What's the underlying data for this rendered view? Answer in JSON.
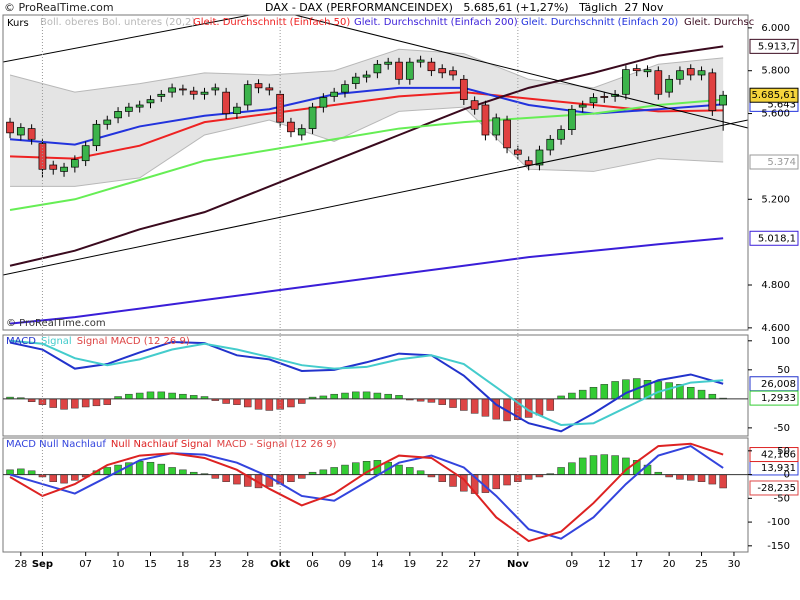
{
  "source": "© ProRealTime.com",
  "chart_data": [
    {
      "type": "candlestick",
      "title": "DAX - DAX (PERFORMANCEINDEX)   5.685,61 (+1,27%)   Täglich  27 Nov",
      "label": "Kurs",
      "watermark": "© ProRealTime.com",
      "xlim": [
        -0.65,
        68.3
      ],
      "ylim": [
        4590,
        6060
      ],
      "yticks": [
        {
          "value": 4600,
          "label": "4.600"
        },
        {
          "value": 4800,
          "label": "4.800"
        },
        {
          "value": 5200,
          "label": "5.200"
        },
        {
          "value": 5600,
          "label": "5.600"
        },
        {
          "value": 5800,
          "label": "5.800"
        },
        {
          "value": 6000,
          "label": "6.000"
        }
      ],
      "up_color": "#3cb44b",
      "down_color": "#e04040",
      "open": [
        5560,
        5500,
        5530,
        5460,
        5360,
        5330,
        5350,
        5380,
        5450,
        5550,
        5580,
        5610,
        5630,
        5650,
        5680,
        5700,
        5715,
        5705,
        5690,
        5710,
        5700,
        5600,
        5640,
        5740,
        5720,
        5690,
        5560,
        5500,
        5530,
        5630,
        5680,
        5700,
        5740,
        5770,
        5790,
        5830,
        5840,
        5760,
        5840,
        5840,
        5810,
        5800,
        5760,
        5660,
        5640,
        5500,
        5570,
        5430,
        5380,
        5360,
        5430,
        5480,
        5525,
        5630,
        5650,
        5680,
        5680,
        5690,
        5810,
        5795,
        5800,
        5700,
        5760,
        5810,
        5780,
        5790,
        5640
      ],
      "high": [
        5580,
        5555,
        5550,
        5480,
        5380,
        5370,
        5405,
        5470,
        5570,
        5590,
        5630,
        5650,
        5660,
        5685,
        5710,
        5740,
        5735,
        5725,
        5720,
        5740,
        5720,
        5650,
        5755,
        5760,
        5740,
        5710,
        5580,
        5550,
        5650,
        5695,
        5720,
        5755,
        5790,
        5800,
        5850,
        5860,
        5860,
        5860,
        5870,
        5860,
        5830,
        5820,
        5780,
        5680,
        5660,
        5600,
        5590,
        5450,
        5400,
        5450,
        5500,
        5545,
        5640,
        5660,
        5695,
        5700,
        5710,
        5825,
        5830,
        5825,
        5820,
        5780,
        5820,
        5830,
        5820,
        5810,
        5706
      ],
      "low": [
        5485,
        5475,
        5455,
        5300,
        5315,
        5305,
        5325,
        5355,
        5425,
        5525,
        5555,
        5585,
        5605,
        5625,
        5655,
        5675,
        5685,
        5665,
        5665,
        5685,
        5575,
        5575,
        5615,
        5695,
        5685,
        5535,
        5490,
        5475,
        5505,
        5605,
        5655,
        5675,
        5715,
        5745,
        5765,
        5805,
        5735,
        5735,
        5815,
        5775,
        5765,
        5755,
        5640,
        5595,
        5475,
        5475,
        5415,
        5385,
        5335,
        5335,
        5405,
        5455,
        5500,
        5605,
        5625,
        5650,
        5655,
        5665,
        5775,
        5770,
        5665,
        5675,
        5735,
        5755,
        5755,
        5589,
        5520
      ],
      "close": [
        5510,
        5535,
        5480,
        5340,
        5340,
        5350,
        5385,
        5450,
        5550,
        5570,
        5610,
        5630,
        5640,
        5665,
        5690,
        5720,
        5710,
        5690,
        5700,
        5720,
        5600,
        5630,
        5735,
        5720,
        5710,
        5560,
        5515,
        5530,
        5630,
        5675,
        5700,
        5735,
        5770,
        5780,
        5830,
        5840,
        5760,
        5840,
        5850,
        5800,
        5790,
        5780,
        5665,
        5620,
        5500,
        5580,
        5440,
        5410,
        5360,
        5430,
        5480,
        5525,
        5620,
        5640,
        5675,
        5675,
        5690,
        5805,
        5800,
        5805,
        5690,
        5760,
        5800,
        5780,
        5800,
        5614,
        5685.61
      ],
      "close_label": "5.685,61",
      "close_label_color": "#f5d43c",
      "band": {
        "name": "Boll. oberes Bol. unteres (20,2)",
        "color": "#e4e4e4",
        "line_color": "#b8b8b8",
        "x": [
          0,
          6,
          12,
          18,
          24,
          30,
          36,
          42,
          48,
          54,
          60,
          66
        ],
        "upper": [
          5780,
          5700,
          5740,
          5790,
          5780,
          5800,
          5900,
          5880,
          5760,
          5720,
          5830,
          5860
        ],
        "lower": [
          5260,
          5260,
          5300,
          5500,
          5570,
          5470,
          5610,
          5630,
          5340,
          5330,
          5390,
          5374
        ],
        "end_label": "5.374"
      },
      "series": [
        {
          "name": "Gleit. Durchschnitt (Einfach 50)",
          "color": "#ee2222",
          "x": [
            0,
            6,
            12,
            18,
            24,
            30,
            36,
            42,
            48,
            54,
            60,
            66
          ],
          "values": [
            5400,
            5390,
            5450,
            5560,
            5600,
            5640,
            5680,
            5700,
            5670,
            5640,
            5610,
            5615
          ]
        },
        {
          "name": "Gleit. Durchschnitt (Einfach 200)",
          "color": "#3a1ed8",
          "x": [
            0,
            6,
            12,
            18,
            24,
            30,
            36,
            42,
            48,
            54,
            60,
            66
          ],
          "values": [
            4620,
            4650,
            4690,
            4730,
            4770,
            4810,
            4850,
            4890,
            4930,
            4960,
            4990,
            5018.1
          ],
          "end_label": "5.018,1"
        },
        {
          "name": "Gleit. Durchschnitt (Einfach 20)",
          "color": "#2233dd",
          "x": [
            0,
            6,
            12,
            18,
            24,
            30,
            36,
            42,
            48,
            54,
            60,
            66
          ],
          "values": [
            5480,
            5455,
            5540,
            5590,
            5620,
            5690,
            5720,
            5720,
            5640,
            5600,
            5620,
            5643
          ],
          "end_label": "5.643"
        },
        {
          "name": "Gleit. Durchsc",
          "color": "#3a0a1e",
          "x": [
            0,
            6,
            12,
            18,
            24,
            30,
            36,
            42,
            48,
            54,
            60,
            66
          ],
          "values": [
            4890,
            4960,
            5060,
            5140,
            5260,
            5380,
            5500,
            5620,
            5720,
            5790,
            5870,
            5913.7
          ],
          "end_label": "5.913,7"
        },
        {
          "color": "#66ee55",
          "x": [
            0,
            6,
            12,
            18,
            24,
            30,
            36,
            42,
            48,
            54,
            60,
            66
          ],
          "values": [
            5150,
            5200,
            5290,
            5380,
            5430,
            5480,
            5530,
            5560,
            5580,
            5600,
            5640,
            5665
          ]
        }
      ]
    },
    {
      "type": "line",
      "xlim": [
        -0.65,
        68.3
      ],
      "ylim": [
        -64,
        110
      ],
      "yticks": [
        -50,
        50,
        100
      ],
      "series": [
        {
          "name": "MACD",
          "color": "#2233cc",
          "x": [
            0,
            3,
            6,
            9,
            12,
            15,
            18,
            21,
            24,
            27,
            30,
            33,
            36,
            39,
            42,
            45,
            48,
            51,
            54,
            57,
            60,
            63,
            66
          ],
          "values": [
            97,
            85,
            52,
            60,
            80,
            98,
            96,
            75,
            68,
            48,
            50,
            63,
            78,
            75,
            40,
            -10,
            -42,
            -56,
            -25,
            10,
            32,
            42,
            26.008
          ],
          "end_label": "26,008"
        },
        {
          "name": "Signal",
          "color": "#44cccc",
          "x": [
            0,
            3,
            6,
            9,
            12,
            15,
            18,
            21,
            24,
            27,
            30,
            33,
            36,
            39,
            42,
            45,
            48,
            51,
            54,
            57,
            60,
            63,
            66
          ],
          "values": [
            100,
            95,
            70,
            58,
            68,
            85,
            95,
            85,
            72,
            58,
            52,
            55,
            68,
            75,
            60,
            20,
            -20,
            -45,
            -42,
            -15,
            12,
            28,
            32
          ]
        },
        {
          "name": "Signal MACD (12 26 9)",
          "type": "bar",
          "color": "#33cc33",
          "negative_color": "#dd4444",
          "values": [
            3,
            2,
            -5,
            -10,
            -15,
            -18,
            -16,
            -14,
            -12,
            -10,
            4,
            8,
            10,
            12,
            12,
            10,
            8,
            6,
            4,
            -3,
            -8,
            -10,
            -14,
            -18,
            -20,
            -18,
            -14,
            -8,
            3,
            5,
            8,
            10,
            12,
            12,
            10,
            8,
            6,
            -2,
            -4,
            -6,
            -10,
            -15,
            -20,
            -25,
            -30,
            -35,
            -38,
            -36,
            -32,
            -28,
            -20,
            5,
            10,
            15,
            20,
            25,
            30,
            33,
            35,
            32,
            30,
            28,
            25,
            20,
            15,
            8,
            1.2933
          ],
          "end_label": "1,2933"
        }
      ]
    },
    {
      "type": "line",
      "xlim": [
        -0.65,
        68.3
      ],
      "ylim": [
        -163,
        77
      ],
      "yticks": [
        -150,
        -100,
        -50,
        0,
        50
      ],
      "xticks": [
        {
          "value": 1,
          "label": "28"
        },
        {
          "value": 3,
          "label": "Sep"
        },
        {
          "value": 7,
          "label": "07"
        },
        {
          "value": 10,
          "label": "10"
        },
        {
          "value": 13,
          "label": "15"
        },
        {
          "value": 16,
          "label": "18"
        },
        {
          "value": 19,
          "label": "23"
        },
        {
          "value": 22,
          "label": "28"
        },
        {
          "value": 25,
          "label": "Okt"
        },
        {
          "value": 28,
          "label": "06"
        },
        {
          "value": 31,
          "label": "09"
        },
        {
          "value": 34,
          "label": "14"
        },
        {
          "value": 37,
          "label": "19"
        },
        {
          "value": 40,
          "label": "22"
        },
        {
          "value": 43,
          "label": "27"
        },
        {
          "value": 47,
          "label": "Nov"
        },
        {
          "value": 52,
          "label": "09"
        },
        {
          "value": 55,
          "label": "12"
        },
        {
          "value": 58,
          "label": "17"
        },
        {
          "value": 61,
          "label": "20"
        },
        {
          "value": 64,
          "label": "25"
        },
        {
          "value": 67,
          "label": "30"
        }
      ],
      "series": [
        {
          "name": "MACD Null Nachlauf",
          "color": "#3344dd",
          "x": [
            0,
            3,
            6,
            9,
            12,
            15,
            18,
            21,
            24,
            27,
            30,
            33,
            36,
            39,
            42,
            45,
            48,
            51,
            54,
            57,
            60,
            63,
            66
          ],
          "values": [
            0,
            -20,
            -40,
            -5,
            30,
            45,
            42,
            25,
            -5,
            -45,
            -55,
            -15,
            25,
            40,
            15,
            -45,
            -115,
            -135,
            -90,
            -20,
            40,
            60,
            13.931
          ],
          "end_label": "13,931"
        },
        {
          "name": "Null Nachlauf Signal",
          "color": "#dd2222",
          "x": [
            0,
            3,
            6,
            9,
            12,
            15,
            18,
            21,
            24,
            27,
            30,
            33,
            36,
            39,
            42,
            45,
            48,
            51,
            54,
            57,
            60,
            63,
            66
          ],
          "values": [
            -5,
            -45,
            -20,
            20,
            40,
            45,
            35,
            10,
            -30,
            -65,
            -40,
            5,
            40,
            35,
            -10,
            -90,
            -140,
            -120,
            -60,
            10,
            60,
            65,
            42.166
          ],
          "end_label": "42,166"
        },
        {
          "name": "MACD - Signal (12 26 9)",
          "type": "bar",
          "color": "#33cc33",
          "negative_color": "#dd4444",
          "values": [
            10,
            12,
            8,
            -5,
            -15,
            -18,
            -12,
            -5,
            8,
            15,
            20,
            25,
            28,
            26,
            22,
            15,
            10,
            5,
            2,
            -8,
            -15,
            -20,
            -25,
            -28,
            -25,
            -20,
            -15,
            -8,
            5,
            10,
            15,
            20,
            25,
            28,
            30,
            26,
            20,
            15,
            8,
            -5,
            -15,
            -25,
            -35,
            -40,
            -38,
            -30,
            -22,
            -15,
            -10,
            -5,
            2,
            15,
            25,
            35,
            40,
            42,
            40,
            35,
            30,
            20,
            5,
            -5,
            -10,
            -12,
            -15,
            -20,
            -28.235
          ],
          "end_label": "-28,235"
        }
      ]
    }
  ]
}
